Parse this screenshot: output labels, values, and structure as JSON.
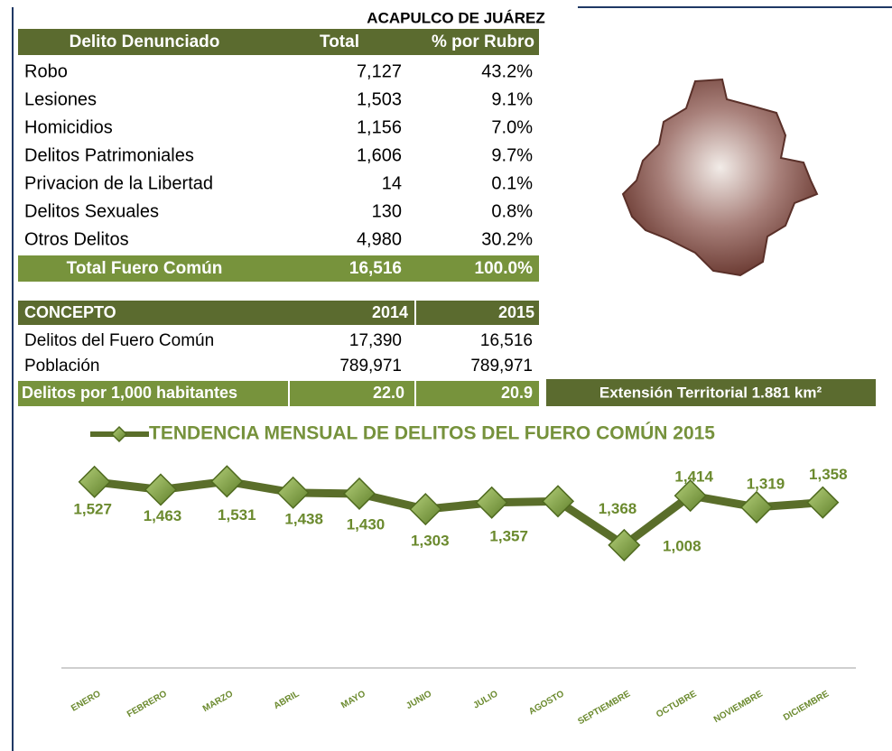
{
  "header": {
    "title": "ACAPULCO DE JUÁREZ"
  },
  "table1": {
    "columns": [
      "Delito Denunciado",
      "Total",
      "% por Rubro"
    ],
    "rows": [
      [
        "Robo",
        "7,127",
        "43.2%"
      ],
      [
        "Lesiones",
        "1,503",
        "9.1%"
      ],
      [
        "Homicidios",
        "1,156",
        "7.0%"
      ],
      [
        "Delitos Patrimoniales",
        "1,606",
        "9.7%"
      ],
      [
        "Privacion de la Libertad",
        "14",
        "0.1%"
      ],
      [
        "Delitos Sexuales",
        "130",
        "0.8%"
      ],
      [
        "Otros Delitos",
        "4,980",
        "30.2%"
      ]
    ],
    "total": [
      "Total Fuero Común",
      "16,516",
      "100.0%"
    ]
  },
  "table2": {
    "columns": [
      "CONCEPTO",
      "2014",
      "2015"
    ],
    "rows": [
      [
        "Delitos del Fuero Común",
        "17,390",
        "16,516"
      ],
      [
        "Población",
        "789,971",
        "789,971"
      ]
    ],
    "total": [
      "Delitos por 1,000 habitantes",
      "22.0",
      "20.9"
    ]
  },
  "extension": "Extensión Territorial 1.881 km²",
  "chart_data": {
    "type": "line",
    "title": "TENDENCIA MENSUAL DE DELITOS DEL FUERO COMÚN 2015",
    "categories": [
      "ENERO",
      "FEBRERO",
      "MARZO",
      "ABRIL",
      "MAYO",
      "JUNIO",
      "JULIO",
      "AGOSTO",
      "SEPTIEMBRE",
      "OCTUBRE",
      "NOVIEMBRE",
      "DICIEMBRE"
    ],
    "values": [
      1527,
      1463,
      1531,
      1438,
      1430,
      1303,
      1357,
      1368,
      1008,
      1414,
      1319,
      1358
    ],
    "value_labels": [
      "1,527",
      "1,463",
      "1,531",
      "1,438",
      "1,430",
      "1,303",
      "1,357",
      "1,368",
      "1,008",
      "1,414",
      "1,319",
      "1,358"
    ],
    "color": "#5a6e2a",
    "ylim": [
      0,
      1800
    ]
  }
}
